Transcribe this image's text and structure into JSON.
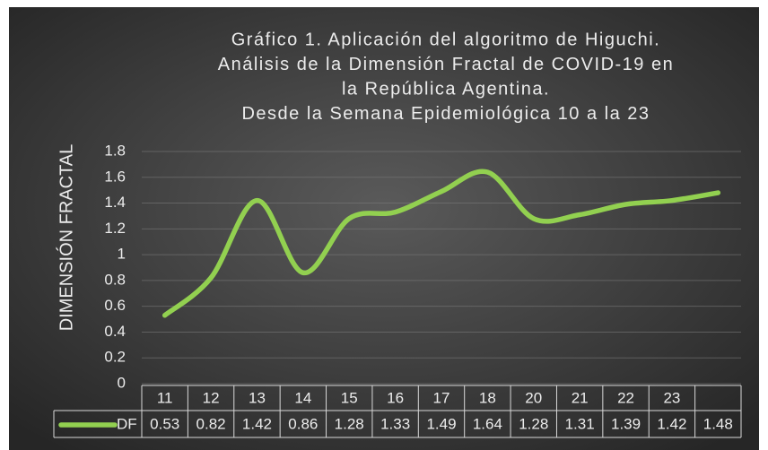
{
  "chart_data": {
    "type": "line",
    "title": [
      "Gráfico 1. Aplicación del algoritmo de Higuchi.",
      "Análisis de la Dimensión Fractal de COVID-19 en",
      "la República  Agentina.",
      "Desde la Semana Epidemiológica 10 a la 23"
    ],
    "y_label": "DIMENSIÓN FRACTAL",
    "categories": [
      "11",
      "12",
      "13",
      "14",
      "15",
      "16",
      "17",
      "18",
      "20",
      "21",
      "22",
      "23",
      null
    ],
    "series": [
      {
        "name": "DF",
        "color": "#92d050",
        "values": [
          0.53,
          0.82,
          1.42,
          0.86,
          1.28,
          1.33,
          1.49,
          1.64,
          1.28,
          1.31,
          1.39,
          1.42,
          1.48
        ]
      }
    ],
    "ylim": [
      0,
      1.8
    ],
    "yticks": [
      0,
      0.2,
      0.4,
      0.6,
      0.8,
      1,
      1.2,
      1.4,
      1.6,
      1.8
    ],
    "grid": true
  }
}
